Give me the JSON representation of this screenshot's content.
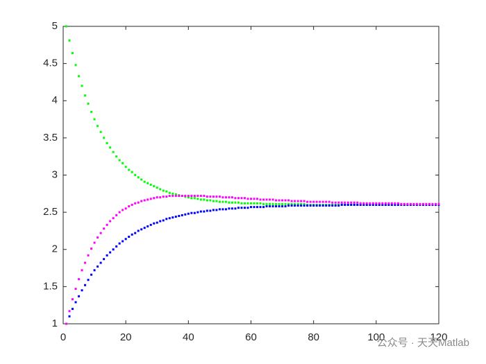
{
  "chart_data": {
    "type": "scatter",
    "xlim": [
      0,
      120
    ],
    "ylim": [
      1,
      5
    ],
    "xticks": [
      0,
      20,
      40,
      60,
      80,
      100,
      120
    ],
    "yticks": [
      1,
      1.5,
      2,
      2.5,
      3,
      3.5,
      4,
      4.5,
      5
    ],
    "watermark": "公众号 · 天天Matlab",
    "x": [
      1,
      2,
      3,
      4,
      5,
      6,
      7,
      8,
      9,
      10,
      11,
      12,
      13,
      14,
      15,
      16,
      17,
      18,
      19,
      20,
      21,
      22,
      23,
      24,
      25,
      26,
      27,
      28,
      29,
      30,
      31,
      32,
      33,
      34,
      35,
      36,
      37,
      38,
      39,
      40,
      41,
      42,
      43,
      44,
      45,
      46,
      47,
      48,
      49,
      50,
      51,
      52,
      53,
      54,
      55,
      56,
      57,
      58,
      59,
      60,
      61,
      62,
      63,
      64,
      65,
      66,
      67,
      68,
      69,
      70,
      71,
      72,
      73,
      74,
      75,
      76,
      77,
      78,
      79,
      80,
      81,
      82,
      83,
      84,
      85,
      86,
      87,
      88,
      89,
      90,
      91,
      92,
      93,
      94,
      95,
      96,
      97,
      98,
      99,
      100,
      101,
      102,
      103,
      104,
      105,
      106,
      107,
      108,
      109,
      110,
      111,
      112,
      113,
      114,
      115,
      116,
      117,
      118,
      119,
      120
    ],
    "series": [
      {
        "color": "#00ff00",
        "values": [
          5.0,
          4.81,
          4.64,
          4.48,
          4.33,
          4.2,
          4.07,
          3.96,
          3.85,
          3.75,
          3.66,
          3.58,
          3.5,
          3.43,
          3.37,
          3.31,
          3.25,
          3.2,
          3.16,
          3.11,
          3.07,
          3.04,
          3.0,
          2.97,
          2.94,
          2.91,
          2.89,
          2.87,
          2.85,
          2.83,
          2.81,
          2.79,
          2.78,
          2.76,
          2.75,
          2.74,
          2.73,
          2.72,
          2.71,
          2.7,
          2.69,
          2.69,
          2.68,
          2.67,
          2.67,
          2.66,
          2.66,
          2.65,
          2.65,
          2.64,
          2.64,
          2.64,
          2.63,
          2.63,
          2.63,
          2.63,
          2.62,
          2.62,
          2.62,
          2.62,
          2.62,
          2.62,
          2.62,
          2.61,
          2.61,
          2.61,
          2.61,
          2.61,
          2.61,
          2.61,
          2.61,
          2.61,
          2.61,
          2.61,
          2.61,
          2.61,
          2.61,
          2.6,
          2.6,
          2.6,
          2.6,
          2.6,
          2.6,
          2.6,
          2.6,
          2.6,
          2.6,
          2.6,
          2.6,
          2.6,
          2.6,
          2.6,
          2.6,
          2.6,
          2.6,
          2.6,
          2.6,
          2.6,
          2.6,
          2.6,
          2.6,
          2.6,
          2.6,
          2.6,
          2.6,
          2.6,
          2.6,
          2.6,
          2.6,
          2.6,
          2.6,
          2.6,
          2.6,
          2.6,
          2.6,
          2.6,
          2.6,
          2.6,
          2.6,
          2.6
        ]
      },
      {
        "color": "#0000ff",
        "values": [
          1.0,
          1.1,
          1.2,
          1.29,
          1.37,
          1.45,
          1.52,
          1.59,
          1.66,
          1.72,
          1.77,
          1.82,
          1.87,
          1.92,
          1.96,
          2.0,
          2.04,
          2.08,
          2.11,
          2.14,
          2.17,
          2.2,
          2.22,
          2.25,
          2.27,
          2.29,
          2.31,
          2.33,
          2.35,
          2.36,
          2.38,
          2.39,
          2.41,
          2.42,
          2.43,
          2.44,
          2.45,
          2.46,
          2.47,
          2.48,
          2.49,
          2.49,
          2.5,
          2.51,
          2.51,
          2.52,
          2.52,
          2.53,
          2.53,
          2.54,
          2.54,
          2.54,
          2.55,
          2.55,
          2.55,
          2.56,
          2.56,
          2.56,
          2.56,
          2.57,
          2.57,
          2.57,
          2.57,
          2.57,
          2.58,
          2.58,
          2.58,
          2.58,
          2.58,
          2.58,
          2.58,
          2.59,
          2.59,
          2.59,
          2.59,
          2.59,
          2.59,
          2.59,
          2.59,
          2.59,
          2.59,
          2.59,
          2.59,
          2.59,
          2.59,
          2.59,
          2.59,
          2.59,
          2.6,
          2.6,
          2.6,
          2.6,
          2.6,
          2.6,
          2.6,
          2.6,
          2.6,
          2.6,
          2.6,
          2.6,
          2.6,
          2.6,
          2.6,
          2.6,
          2.6,
          2.6,
          2.6,
          2.6,
          2.6,
          2.6,
          2.6,
          2.6,
          2.6,
          2.6,
          2.6,
          2.6,
          2.6,
          2.6,
          2.6,
          2.6
        ]
      },
      {
        "color": "#ff00ff",
        "values": [
          1.0,
          1.17,
          1.33,
          1.47,
          1.6,
          1.72,
          1.82,
          1.92,
          2.01,
          2.09,
          2.16,
          2.22,
          2.28,
          2.33,
          2.38,
          2.42,
          2.46,
          2.5,
          2.53,
          2.55,
          2.58,
          2.6,
          2.62,
          2.63,
          2.65,
          2.66,
          2.67,
          2.68,
          2.69,
          2.7,
          2.7,
          2.71,
          2.71,
          2.72,
          2.72,
          2.72,
          2.72,
          2.72,
          2.72,
          2.72,
          2.72,
          2.72,
          2.72,
          2.72,
          2.72,
          2.71,
          2.71,
          2.71,
          2.71,
          2.71,
          2.7,
          2.7,
          2.7,
          2.7,
          2.69,
          2.69,
          2.69,
          2.69,
          2.68,
          2.68,
          2.68,
          2.68,
          2.67,
          2.67,
          2.67,
          2.67,
          2.67,
          2.66,
          2.66,
          2.66,
          2.66,
          2.66,
          2.65,
          2.65,
          2.65,
          2.65,
          2.65,
          2.64,
          2.64,
          2.64,
          2.64,
          2.64,
          2.64,
          2.64,
          2.64,
          2.63,
          2.63,
          2.63,
          2.63,
          2.63,
          2.63,
          2.63,
          2.63,
          2.63,
          2.62,
          2.62,
          2.62,
          2.62,
          2.62,
          2.62,
          2.62,
          2.62,
          2.62,
          2.62,
          2.62,
          2.62,
          2.62,
          2.61,
          2.61,
          2.61,
          2.61,
          2.61,
          2.61,
          2.61,
          2.61,
          2.61,
          2.61,
          2.61,
          2.61,
          2.61
        ]
      }
    ]
  }
}
